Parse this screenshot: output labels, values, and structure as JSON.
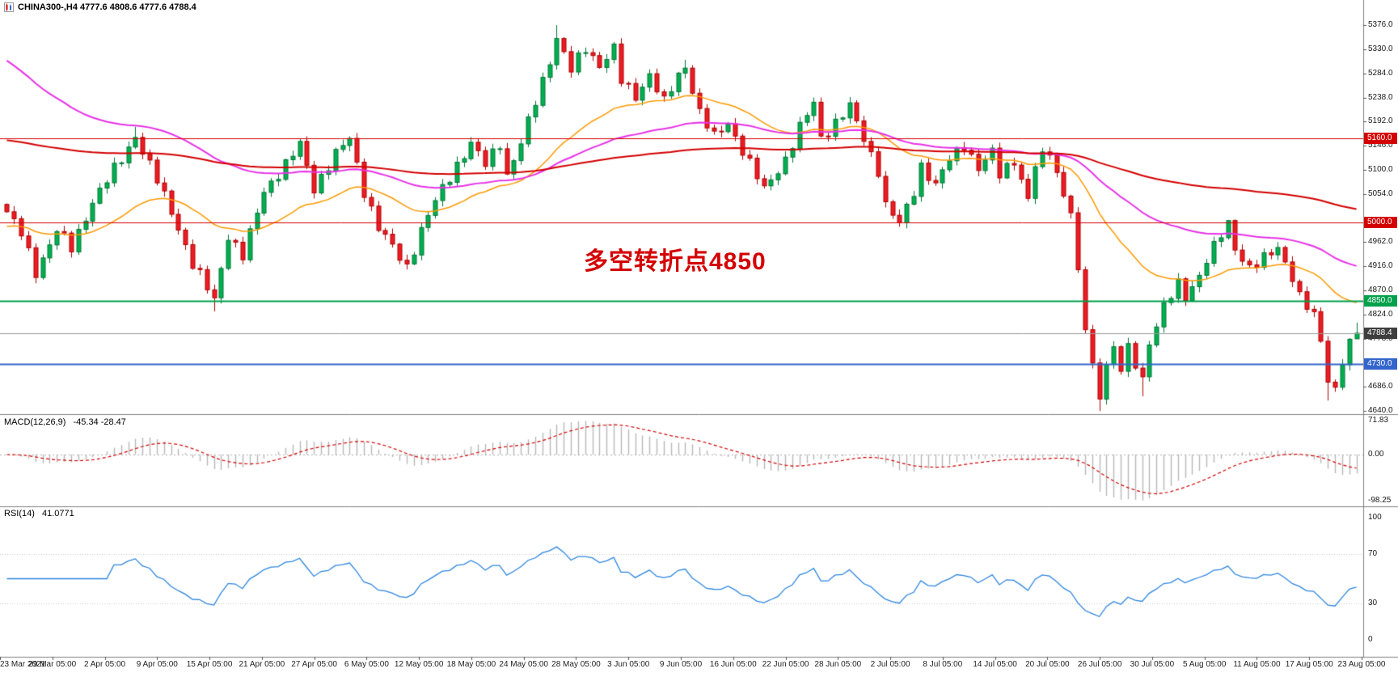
{
  "header": {
    "display": "CHINA300-,H4  4777.6 4808.6 4777.6 4788.4",
    "symbol": "CHINA300-",
    "timeframe": "H4",
    "open": "4777.6",
    "high": "4808.6",
    "low": "4777.6",
    "close": "4788.4"
  },
  "chart_data": {
    "type": "candlestick",
    "title": "CHINA300-,H4",
    "symbol": "CHINA300-",
    "timeframe": "H4",
    "current_ohlc": {
      "open": 4777.6,
      "high": 4808.6,
      "low": 4777.6,
      "close": 4788.4
    },
    "annotation": {
      "text": "多空转折点4850",
      "color": "#D40000"
    },
    "y_axis": {
      "min": 4634,
      "max": 5424,
      "tick_step": 46,
      "ticks": [
        5376,
        5330,
        5284,
        5238,
        5192,
        5146,
        5100,
        5054,
        4962,
        4916,
        4870,
        4824,
        4778,
        4686,
        4640
      ]
    },
    "x_axis": {
      "labels": [
        "23 Mar 2021",
        "29 Mar 05:00",
        "2 Apr 05:00",
        "9 Apr 05:00",
        "15 Apr 05:00",
        "21 Apr 05:00",
        "27 Apr 05:00",
        "6 May 05:00",
        "12 May 05:00",
        "18 May 05:00",
        "24 May 05:00",
        "28 May 05:00",
        "3 Jun 05:00",
        "9 Jun 05:00",
        "16 Jun 05:00",
        "22 Jun 05:00",
        "28 Jun 05:00",
        "2 Jul 05:00",
        "8 Jul 05:00",
        "14 Jul 05:00",
        "20 Jul 05:00",
        "26 Jul 05:00",
        "30 Jul 05:00",
        "5 Aug 05:00",
        "11 Aug 05:00",
        "17 Aug 05:00",
        "23 Aug 05:00"
      ]
    },
    "horizontal_levels": [
      {
        "price": 5160.0,
        "label": "5160.0",
        "line_color": "#D40000",
        "tag_bg": "#D40000",
        "line_width": 1
      },
      {
        "price": 5000.0,
        "label": "5000.0",
        "line_color": "#D40000",
        "tag_bg": "#D40000",
        "line_width": 1
      },
      {
        "price": 4850.0,
        "label": "4850.0",
        "line_color": "#00A14B",
        "tag_bg": "#00A14B",
        "line_width": 2
      },
      {
        "price": 4730.0,
        "label": "4730.0",
        "line_color": "#3366CC",
        "tag_bg": "#3366CC",
        "line_width": 2
      },
      {
        "price": 4788.4,
        "label": "4788.4",
        "line_color": "#9A9A9A",
        "tag_bg": "#3E3E3E",
        "line_width": 1,
        "role": "current-price"
      }
    ],
    "candle_count": 190,
    "colors": {
      "background": "#FFFFFF",
      "up_fill": "#00B050",
      "up_edge": "#007636",
      "down_fill": "#ED1C24",
      "down_edge": "#AF0000",
      "separator": "#808080",
      "axis_text": "#1A1A1A",
      "tick_mark": "#555555"
    },
    "price_path_anchors": [
      [
        0,
        5020
      ],
      [
        2,
        4978
      ],
      [
        4,
        4905
      ],
      [
        7,
        4985
      ],
      [
        9,
        4950
      ],
      [
        12,
        5040
      ],
      [
        16,
        5120
      ],
      [
        18,
        5165
      ],
      [
        21,
        5080
      ],
      [
        24,
        4990
      ],
      [
        26,
        4920
      ],
      [
        29,
        4852
      ],
      [
        31,
        4975
      ],
      [
        33,
        4935
      ],
      [
        36,
        5060
      ],
      [
        39,
        5110
      ],
      [
        41,
        5148
      ],
      [
        43,
        5065
      ],
      [
        46,
        5130
      ],
      [
        48,
        5160
      ],
      [
        50,
        5060
      ],
      [
        52,
        4990
      ],
      [
        56,
        4915
      ],
      [
        58,
        4985
      ],
      [
        60,
        5040
      ],
      [
        63,
        5110
      ],
      [
        65,
        5150
      ],
      [
        67,
        5110
      ],
      [
        69,
        5152
      ],
      [
        70,
        5090
      ],
      [
        72,
        5150
      ],
      [
        74,
        5230
      ],
      [
        76,
        5310
      ],
      [
        77,
        5352
      ],
      [
        79,
        5290
      ],
      [
        81,
        5332
      ],
      [
        83,
        5300
      ],
      [
        85,
        5330
      ],
      [
        86,
        5270
      ],
      [
        88,
        5240
      ],
      [
        90,
        5282
      ],
      [
        92,
        5228
      ],
      [
        94,
        5280
      ],
      [
        95,
        5298
      ],
      [
        97,
        5210
      ],
      [
        99,
        5162
      ],
      [
        101,
        5190
      ],
      [
        104,
        5112
      ],
      [
        106,
        5062
      ],
      [
        109,
        5120
      ],
      [
        111,
        5180
      ],
      [
        113,
        5228
      ],
      [
        114,
        5162
      ],
      [
        116,
        5190
      ],
      [
        118,
        5220
      ],
      [
        120,
        5160
      ],
      [
        122,
        5100
      ],
      [
        123,
        5032
      ],
      [
        125,
        4996
      ],
      [
        127,
        5060
      ],
      [
        128,
        5108
      ],
      [
        130,
        5070
      ],
      [
        132,
        5120
      ],
      [
        134,
        5150
      ],
      [
        136,
        5102
      ],
      [
        138,
        5132
      ],
      [
        139,
        5092
      ],
      [
        141,
        5120
      ],
      [
        143,
        5042
      ],
      [
        144,
        5108
      ],
      [
        146,
        5138
      ],
      [
        147,
        5092
      ],
      [
        149,
        5020
      ],
      [
        150,
        4900
      ],
      [
        151,
        4800
      ],
      [
        152,
        4722
      ],
      [
        153,
        4672
      ],
      [
        154,
        4730
      ],
      [
        155,
        4762
      ],
      [
        156,
        4720
      ],
      [
        157,
        4756
      ],
      [
        159,
        4700
      ],
      [
        160,
        4772
      ],
      [
        162,
        4840
      ],
      [
        164,
        4880
      ],
      [
        165,
        4856
      ],
      [
        167,
        4900
      ],
      [
        168,
        4930
      ],
      [
        170,
        4975
      ],
      [
        171,
        4995
      ],
      [
        172,
        4950
      ],
      [
        174,
        4915
      ],
      [
        176,
        4930
      ],
      [
        178,
        4950
      ],
      [
        180,
        4898
      ],
      [
        181,
        4860
      ],
      [
        183,
        4820
      ],
      [
        184,
        4772
      ],
      [
        185,
        4700
      ],
      [
        186,
        4682
      ],
      [
        187,
        4740
      ],
      [
        188,
        4768
      ],
      [
        189,
        4788.4
      ]
    ],
    "wick_overrides": {
      "18": {
        "high": 5182
      },
      "29": {
        "low": 4830
      },
      "77": {
        "high": 5376
      },
      "95": {
        "high": 5310
      },
      "113": {
        "high": 5238
      },
      "153": {
        "low": 4640
      },
      "159": {
        "low": 4668
      },
      "171": {
        "high": 5004
      },
      "185": {
        "low": 4660
      },
      "189": {
        "open": 4777.6,
        "high": 4808.6,
        "low": 4777.6,
        "close": 4788.4
      }
    },
    "moving_averages": [
      {
        "name": "ma-fast-orange",
        "color": "#FF9900",
        "width": 1.5,
        "alpha": 0.07,
        "seed": 4990
      },
      {
        "name": "ma-medium-magenta",
        "color": "#E832E8",
        "width": 2,
        "alpha": 0.032,
        "seed": 5318
      },
      {
        "name": "ma-slow-red",
        "color": "#D40000",
        "width": 2,
        "alpha": 0.011,
        "seed": 5158
      }
    ],
    "indicators": {
      "macd": {
        "label": "MACD(12,26,9)",
        "values_text": "-45.34 -28.47",
        "main_value": -45.34,
        "signal_value": -28.47,
        "fast": 12,
        "slow": 26,
        "signal": 9,
        "max": 71.83,
        "min": -98.25,
        "axis": [
          {
            "v": 71.83,
            "label": "71.83"
          },
          {
            "v": 0,
            "label": "0.00"
          },
          {
            "v": -98.25,
            "label": "-98.25"
          }
        ],
        "histogram_color": "#B8B8B8",
        "signal_color": "#D40000",
        "zero_line_color": "#ABABAB"
      },
      "rsi": {
        "label": "RSI(14)",
        "value_text": "41.0771",
        "value": 41.0771,
        "period": 14,
        "axis": [
          {
            "v": 100,
            "label": "100"
          },
          {
            "v": 70,
            "label": "70"
          },
          {
            "v": 30,
            "label": "30"
          },
          {
            "v": 0,
            "label": "0"
          }
        ],
        "levels": [
          70,
          30
        ],
        "line_color": "#2E86E0",
        "level_color": "#C8C8C8"
      }
    }
  }
}
